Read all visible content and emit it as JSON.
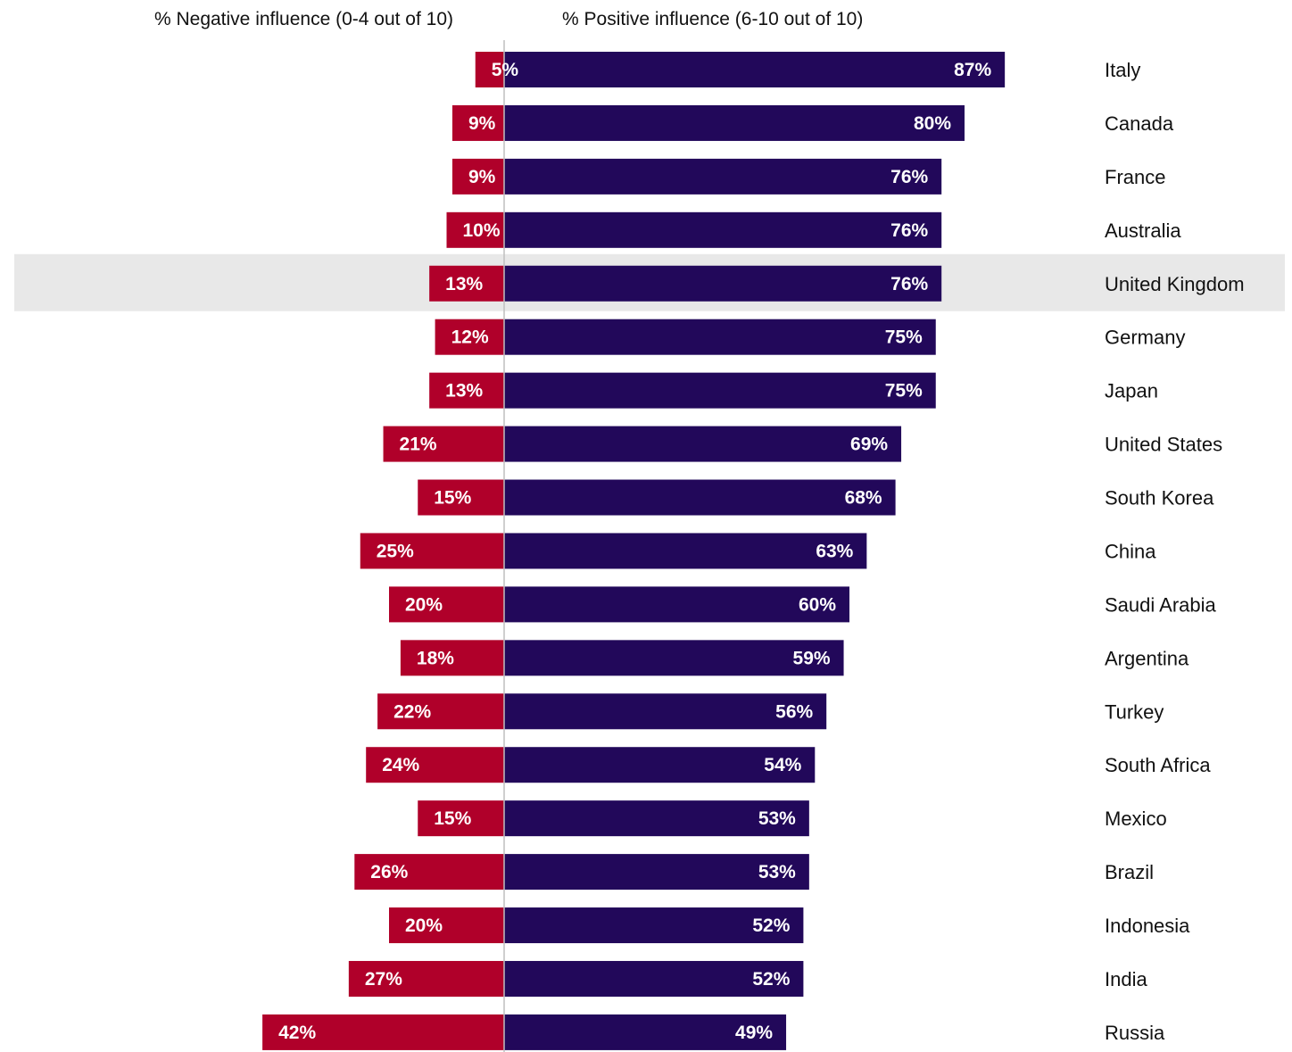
{
  "chart_data": {
    "type": "bar",
    "orientation": "horizontal",
    "layout": "diverging",
    "headers": {
      "negative": "% Negative influence (0-4 out of 10)",
      "positive": "% Positive influence (6-10 out of 10)"
    },
    "categories": [
      "Italy",
      "Canada",
      "France",
      "Australia",
      "United Kingdom",
      "Germany",
      "Japan",
      "United States",
      "South Korea",
      "China",
      "Saudi Arabia",
      "Argentina",
      "Turkey",
      "South Africa",
      "Mexico",
      "Brazil",
      "Indonesia",
      "India",
      "Russia"
    ],
    "highlighted_category": "United Kingdom",
    "series": [
      {
        "key": "negative",
        "color": "#b0002a",
        "values": [
          5,
          9,
          9,
          10,
          13,
          12,
          13,
          21,
          15,
          25,
          20,
          18,
          22,
          24,
          15,
          26,
          20,
          27,
          42
        ],
        "labels": [
          "5%",
          "9%",
          "9%",
          "10%",
          "13%",
          "12%",
          "13%",
          "21%",
          "15%",
          "25%",
          "20%",
          "18%",
          "22%",
          "24%",
          "15%",
          "26%",
          "20%",
          "27%",
          "42%"
        ]
      },
      {
        "key": "positive",
        "color": "#22085a",
        "values": [
          87,
          80,
          76,
          76,
          76,
          75,
          75,
          69,
          68,
          63,
          60,
          59,
          56,
          54,
          53,
          53,
          52,
          52,
          49
        ],
        "labels": [
          "87%",
          "80%",
          "76%",
          "76%",
          "76%",
          "75%",
          "75%",
          "69%",
          "68%",
          "63%",
          "60%",
          "59%",
          "56%",
          "54%",
          "53%",
          "53%",
          "52%",
          "52%",
          "49%"
        ]
      }
    ],
    "unit": "%",
    "grid": false,
    "legend": "none",
    "colors": {
      "highlight_row": "#e8e8e8",
      "axis_line": "#bfbfbf"
    }
  }
}
